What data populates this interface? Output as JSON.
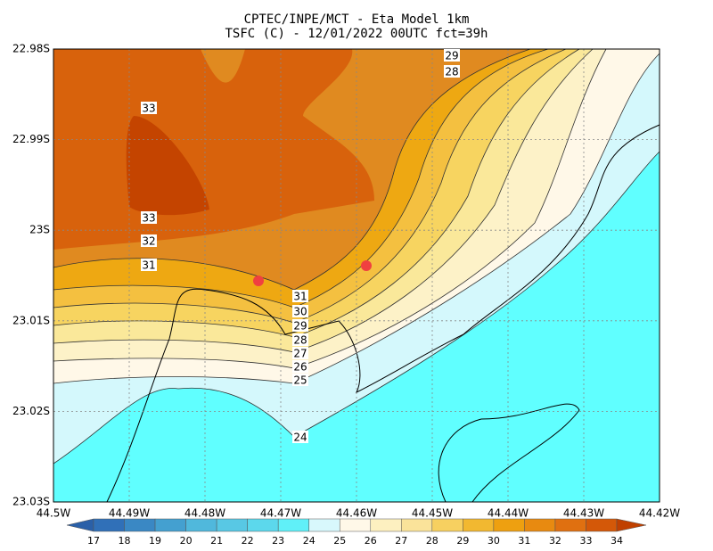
{
  "header": {
    "title": "CPTEC/INPE/MCT -  Eta Model 1km",
    "subtitle": "TSFC (C) - 12/01/2022 00UTC fct=39h"
  },
  "lat_ticks": [
    "22.98S",
    "22.99S",
    "23S",
    "23.01S",
    "23.02S",
    "23.03S"
  ],
  "lon_ticks": [
    "44.5W",
    "44.49W",
    "44.48W",
    "44.47W",
    "44.46W",
    "44.45W",
    "44.44W",
    "44.43W",
    "44.42W"
  ],
  "contour_labels": [
    33,
    33,
    32,
    31,
    31,
    30,
    29,
    28,
    27,
    26,
    25,
    24,
    29,
    28
  ],
  "colorbar": [
    17,
    18,
    19,
    20,
    21,
    22,
    23,
    24,
    25,
    26,
    27,
    28,
    29,
    30,
    31,
    32,
    33,
    34
  ]
}
